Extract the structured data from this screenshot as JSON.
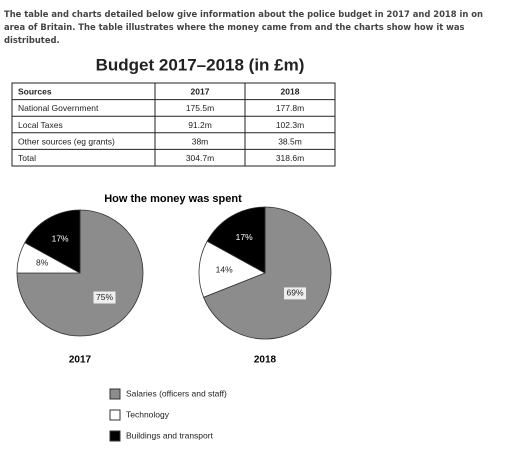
{
  "intro": "The table and charts detailed below give information about the police budget in 2017 and 2018 in on area of Britain. The table illustrates where the money came from and the charts show how it was distributed.",
  "table": {
    "title": "Budget 2017–2018 (in £m)",
    "header": [
      "Sources",
      "2017",
      "2018"
    ],
    "rows": [
      [
        "National Government",
        "175.5m",
        "177.8m"
      ],
      [
        "Local Taxes",
        "91.2m",
        "102.3m"
      ],
      [
        "Other sources (eg grants)",
        "38m",
        "38.5m"
      ],
      [
        "Total",
        "304.7m",
        "318.6m"
      ]
    ]
  },
  "chart_data": {
    "type": "pie",
    "title": "How the money was spent",
    "categories": [
      "Salaries (officers and staff)",
      "Technology",
      "Buildings and transport"
    ],
    "colors": [
      "#8c8c8c",
      "#ffffff",
      "#000000"
    ],
    "series": [
      {
        "name": "2017",
        "values": [
          75,
          8,
          17
        ],
        "value_labels": [
          "75%",
          "8%",
          "17%"
        ]
      },
      {
        "name": "2018",
        "values": [
          69,
          14,
          17
        ],
        "value_labels": [
          "69%",
          "14%",
          "17%"
        ]
      }
    ]
  }
}
